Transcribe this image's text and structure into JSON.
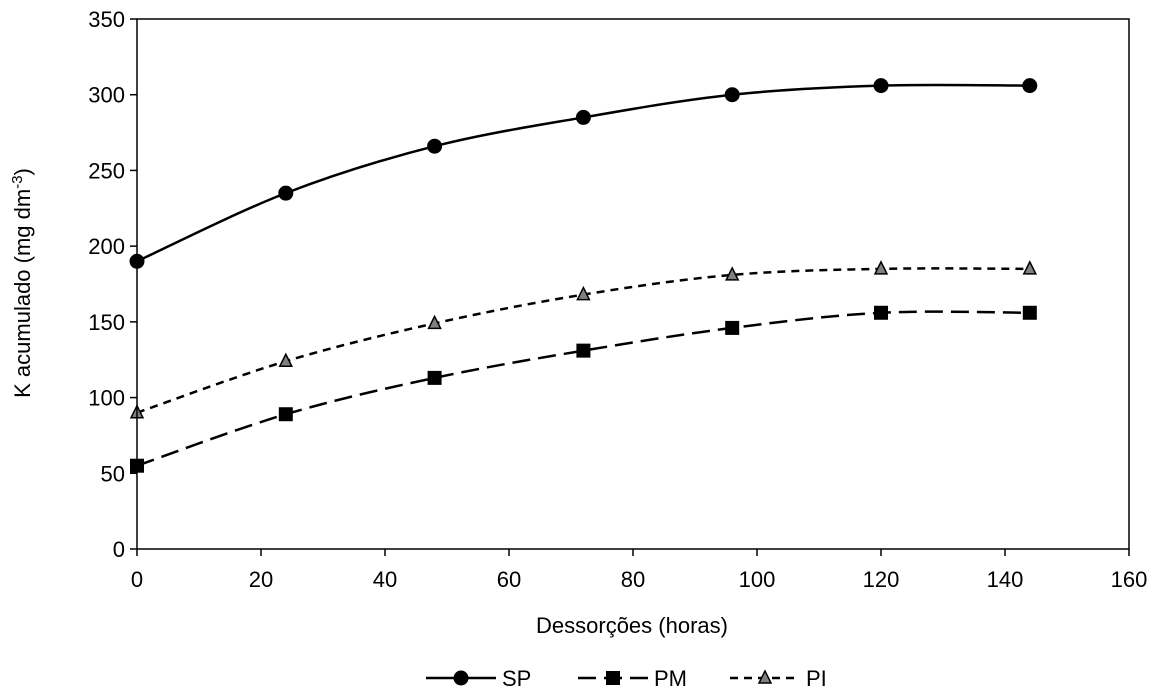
{
  "chart_data": {
    "type": "line",
    "title": "",
    "xlabel": "Dessorções (horas)",
    "ylabel": "K acumulado (mg dm",
    "ylabel_sup": "-3",
    "ylabel_close": ")",
    "xlim": [
      0,
      160
    ],
    "ylim": [
      0,
      350
    ],
    "x_ticks": [
      0,
      20,
      40,
      60,
      80,
      100,
      120,
      140,
      160
    ],
    "y_ticks": [
      0,
      50,
      100,
      150,
      200,
      250,
      300,
      350
    ],
    "grid": false,
    "legend_position": "bottom",
    "x": [
      0,
      24,
      48,
      72,
      96,
      120,
      144
    ],
    "series": [
      {
        "name": "SP",
        "values": [
          190,
          235,
          266,
          285,
          300,
          306,
          306
        ],
        "marker": "circle",
        "line": "solid",
        "color": "#000000"
      },
      {
        "name": "PM",
        "values": [
          55,
          89,
          113,
          131,
          146,
          156,
          156
        ],
        "marker": "square",
        "line": "long-dash",
        "color": "#000000"
      },
      {
        "name": "PI",
        "values": [
          90,
          124,
          149,
          168,
          181,
          185,
          185
        ],
        "marker": "triangle",
        "line": "short-dash",
        "color": "#000000",
        "marker_fill": "#808080"
      }
    ]
  }
}
